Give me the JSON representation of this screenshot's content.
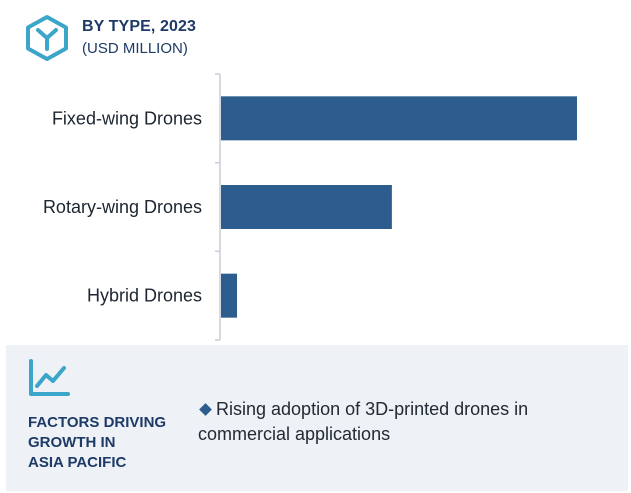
{
  "header": {
    "title": "BY TYPE, 2023",
    "subtitle": "(USD MILLION)"
  },
  "colors": {
    "bar": "#2d5d8f",
    "icon": "#3ba6c9",
    "heading": "#1e3a66",
    "panel_bg": "#eef1f6"
  },
  "chart_data": {
    "type": "bar",
    "orientation": "horizontal",
    "categories": [
      "Fixed-wing Drones",
      "Rotary-wing Drones",
      "Hybrid Drones"
    ],
    "values": [
      100,
      48,
      4.5
    ],
    "xlim": [
      0,
      100
    ],
    "axis_ticks_visible": false,
    "grid": false,
    "legend": "none"
  },
  "factors": {
    "heading_lines": [
      "FACTORS DRIVING",
      "GROWTH IN",
      "ASIA PACIFIC"
    ],
    "bullets": [
      "Rising adoption of 3D-printed drones in commercial applications"
    ]
  }
}
